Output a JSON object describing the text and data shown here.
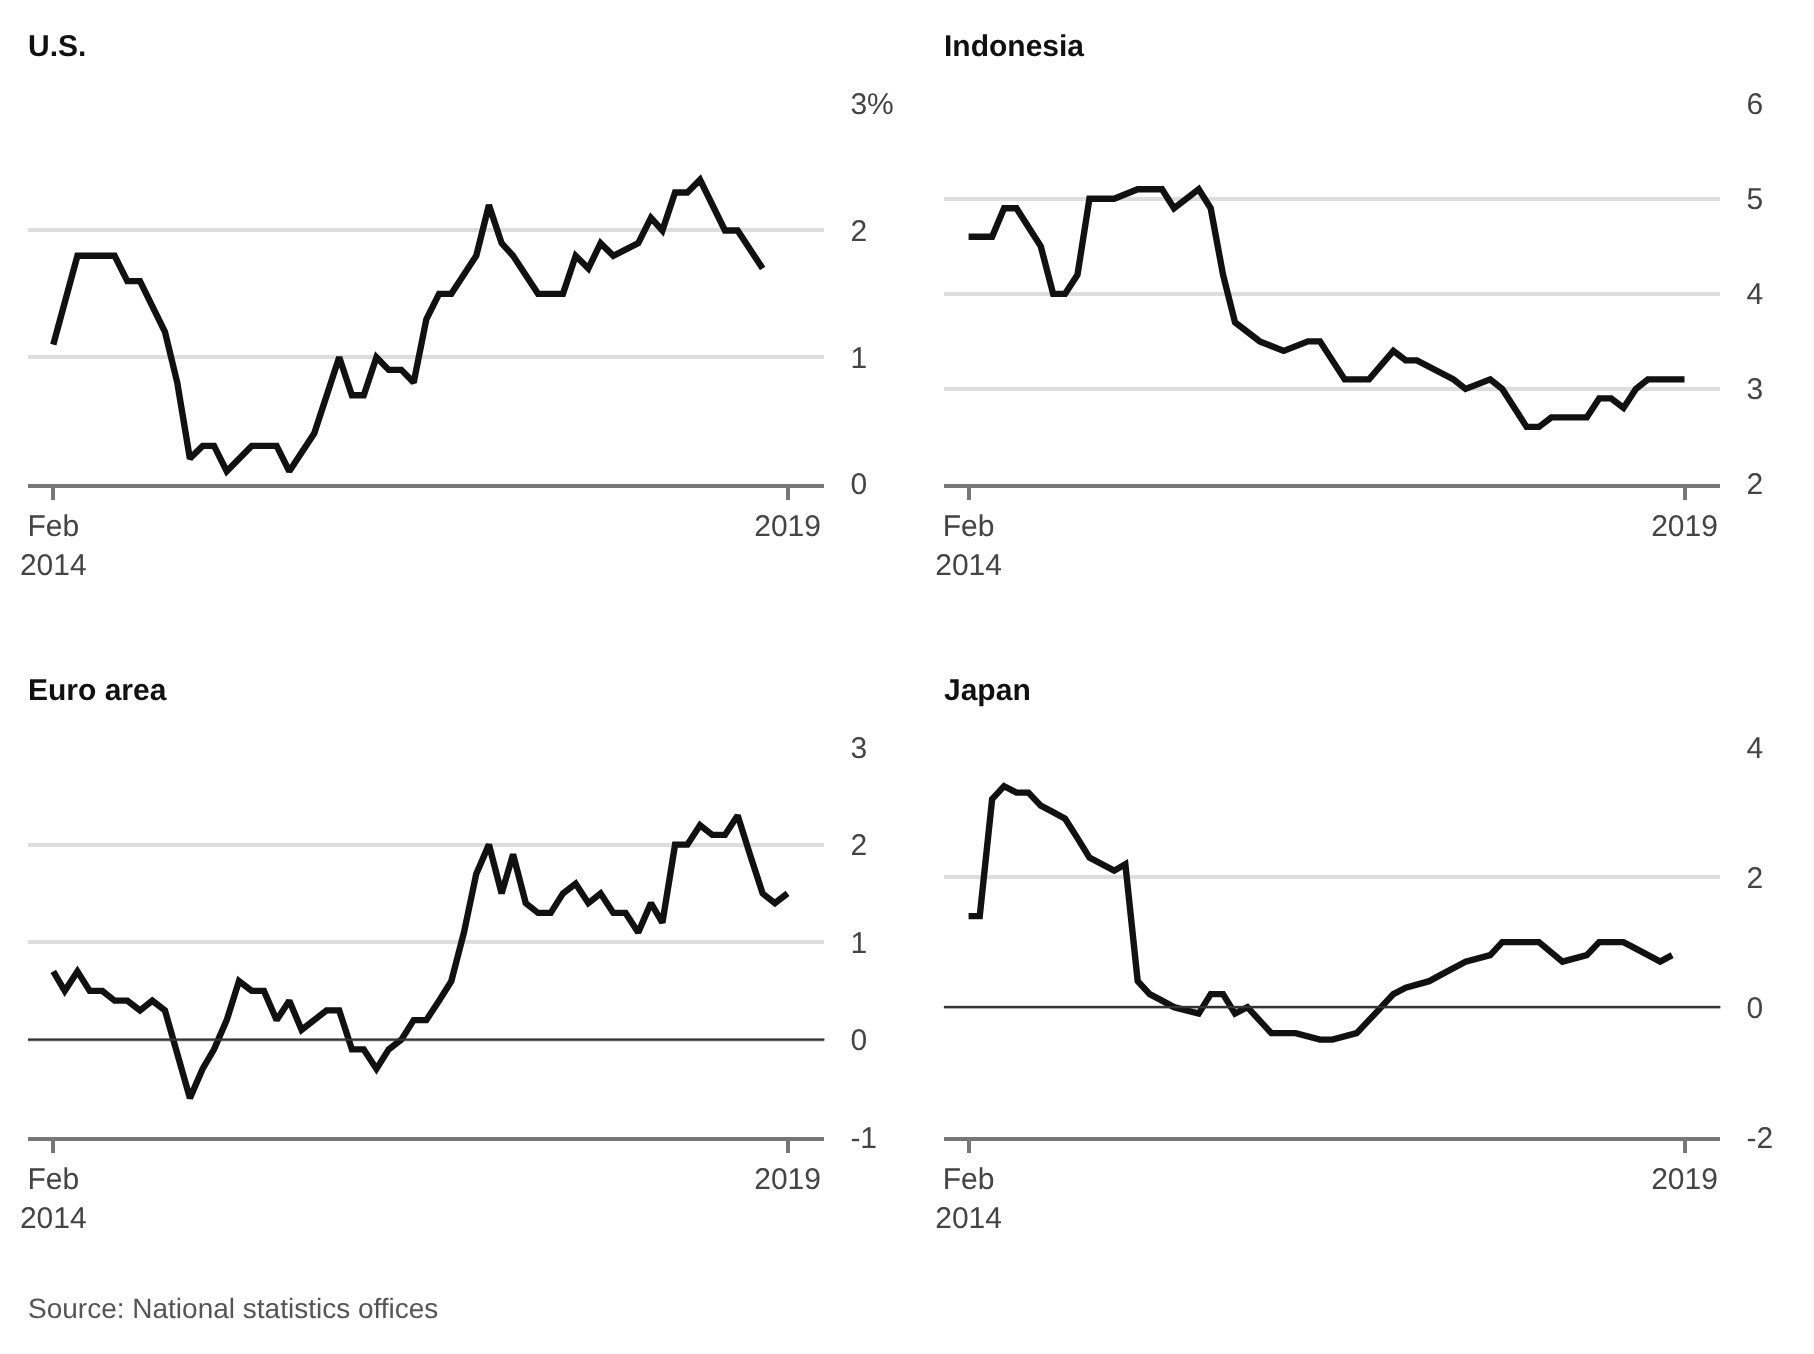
{
  "chart_data": [
    {
      "type": "line",
      "title": "U.S.",
      "xlim": [
        "2013-12-01",
        "2019-04-01"
      ],
      "xticks": [
        {
          "value": "2014-02",
          "label": "Feb\n2014"
        },
        {
          "value": "2019-01",
          "label": "2019"
        }
      ],
      "ylim": [
        0,
        3
      ],
      "yticks": [
        0,
        1,
        2,
        {
          "value": 3,
          "label": "3%"
        }
      ],
      "grid": "y",
      "series": [
        {
          "color": "#111111",
          "x": [
            "2014-02",
            "2014-04",
            "2014-07",
            "2014-08",
            "2014-09",
            "2014-11",
            "2014-12",
            "2015-01",
            "2015-02",
            "2015-03",
            "2015-04",
            "2015-06",
            "2015-08",
            "2015-09",
            "2015-11",
            "2016-01",
            "2016-02",
            "2016-03",
            "2016-04",
            "2016-05",
            "2016-06",
            "2016-07",
            "2016-08",
            "2016-09",
            "2016-10",
            "2016-12",
            "2017-01",
            "2017-02",
            "2017-03",
            "2017-05",
            "2017-07",
            "2017-08",
            "2017-09",
            "2017-10",
            "2017-11",
            "2018-01",
            "2018-02",
            "2018-03",
            "2018-04",
            "2018-05",
            "2018-06",
            "2018-08",
            "2018-09",
            "2018-11"
          ],
          "values": [
            1.1,
            1.8,
            1.8,
            1.6,
            1.6,
            1.2,
            0.8,
            0.2,
            0.3,
            0.3,
            0.1,
            0.3,
            0.3,
            0.1,
            0.4,
            1.0,
            0.7,
            0.7,
            1.0,
            0.9,
            0.9,
            0.8,
            1.3,
            1.5,
            1.5,
            1.8,
            2.2,
            1.9,
            1.8,
            1.5,
            1.5,
            1.8,
            1.7,
            1.9,
            1.8,
            1.9,
            2.1,
            2.0,
            2.3,
            2.3,
            2.4,
            2.0,
            2.0,
            1.7
          ]
        }
      ]
    },
    {
      "type": "line",
      "title": "Indonesia",
      "xlim": [
        "2013-12-01",
        "2019-04-01"
      ],
      "xticks": [
        {
          "value": "2014-02",
          "label": "Feb\n2014"
        },
        {
          "value": "2019-01",
          "label": "2019"
        }
      ],
      "ylim": [
        2,
        6
      ],
      "yticks": [
        2,
        3,
        4,
        5,
        6
      ],
      "grid": "y",
      "series": [
        {
          "color": "#111111",
          "x": [
            "2014-02",
            "2014-04",
            "2014-05",
            "2014-06",
            "2014-08",
            "2014-09",
            "2014-10",
            "2014-11",
            "2014-12",
            "2015-01",
            "2015-02",
            "2015-04",
            "2015-06",
            "2015-07",
            "2015-09",
            "2015-10",
            "2015-11",
            "2015-12",
            "2016-01",
            "2016-02",
            "2016-04",
            "2016-06",
            "2016-07",
            "2016-08",
            "2016-09",
            "2016-11",
            "2017-01",
            "2017-02",
            "2017-03",
            "2017-06",
            "2017-07",
            "2017-09",
            "2017-10",
            "2017-12",
            "2018-01",
            "2018-02",
            "2018-03",
            "2018-04",
            "2018-05",
            "2018-06",
            "2018-07",
            "2018-08",
            "2018-09",
            "2018-10",
            "2018-11",
            "2019-01"
          ],
          "values": [
            4.6,
            4.6,
            4.9,
            4.9,
            4.5,
            4.0,
            4.0,
            4.2,
            5.0,
            5.0,
            5.0,
            5.1,
            5.1,
            4.9,
            5.1,
            4.9,
            4.2,
            3.7,
            3.6,
            3.5,
            3.4,
            3.5,
            3.5,
            3.3,
            3.1,
            3.1,
            3.4,
            3.3,
            3.3,
            3.1,
            3.0,
            3.1,
            3.0,
            2.6,
            2.6,
            2.7,
            2.7,
            2.7,
            2.7,
            2.9,
            2.9,
            2.8,
            3.0,
            3.1,
            3.1,
            3.1
          ]
        }
      ]
    },
    {
      "type": "line",
      "title": "Euro area",
      "xlim": [
        "2013-12-01",
        "2019-04-01"
      ],
      "xticks": [
        {
          "value": "2014-02",
          "label": "Feb\n2014"
        },
        {
          "value": "2019-01",
          "label": "2019"
        }
      ],
      "ylim": [
        -1,
        3
      ],
      "yticks": [
        -1,
        0,
        1,
        2,
        3
      ],
      "grid": "y",
      "ref_lines": [
        {
          "axis": "y",
          "value": 0,
          "color": "#333333"
        }
      ],
      "annotations": [
        "Source: National statistics offices"
      ],
      "series": [
        {
          "color": "#111111",
          "x": [
            "2014-02",
            "2014-03",
            "2014-04",
            "2014-05",
            "2014-06",
            "2014-07",
            "2014-08",
            "2014-09",
            "2014-10",
            "2014-11",
            "2015-01",
            "2015-02",
            "2015-03",
            "2015-04",
            "2015-05",
            "2015-06",
            "2015-07",
            "2015-08",
            "2015-09",
            "2015-10",
            "2015-12",
            "2016-01",
            "2016-02",
            "2016-03",
            "2016-04",
            "2016-05",
            "2016-06",
            "2016-07",
            "2016-08",
            "2016-09",
            "2016-10",
            "2016-11",
            "2016-12",
            "2017-01",
            "2017-02",
            "2017-03",
            "2017-04",
            "2017-05",
            "2017-06",
            "2017-07",
            "2017-08",
            "2017-09",
            "2017-10",
            "2017-11",
            "2017-12",
            "2018-01",
            "2018-02",
            "2018-03",
            "2018-04",
            "2018-05",
            "2018-06",
            "2018-07",
            "2018-08",
            "2018-09",
            "2018-10",
            "2018-11",
            "2018-12",
            "2019-01"
          ],
          "values": [
            0.7,
            0.5,
            0.7,
            0.5,
            0.5,
            0.4,
            0.4,
            0.3,
            0.4,
            0.3,
            -0.6,
            -0.3,
            -0.1,
            0.2,
            0.6,
            0.5,
            0.5,
            0.2,
            0.4,
            0.1,
            0.3,
            0.3,
            -0.1,
            -0.1,
            -0.3,
            -0.1,
            0.0,
            0.2,
            0.2,
            0.4,
            0.6,
            1.1,
            1.7,
            2.0,
            1.5,
            1.9,
            1.4,
            1.3,
            1.3,
            1.5,
            1.6,
            1.4,
            1.5,
            1.3,
            1.3,
            1.1,
            1.4,
            1.2,
            2.0,
            2.0,
            2.2,
            2.1,
            2.1,
            2.3,
            1.9,
            1.5,
            1.4,
            1.5
          ]
        }
      ]
    },
    {
      "type": "line",
      "title": "Japan",
      "xlim": [
        "2013-12-01",
        "2019-04-01"
      ],
      "xticks": [
        {
          "value": "2014-02",
          "label": "Feb\n2014"
        },
        {
          "value": "2019-01",
          "label": "2019"
        }
      ],
      "ylim": [
        -2,
        4
      ],
      "yticks": [
        -2,
        0,
        2,
        4
      ],
      "grid": "y",
      "ref_lines": [
        {
          "axis": "y",
          "value": 0,
          "color": "#333333"
        }
      ],
      "series": [
        {
          "color": "#111111",
          "x": [
            "2014-02",
            "2014-03",
            "2014-04",
            "2014-05",
            "2014-06",
            "2014-07",
            "2014-08",
            "2014-09",
            "2014-10",
            "2014-11",
            "2014-12",
            "2015-02",
            "2015-03",
            "2015-04",
            "2015-05",
            "2015-06",
            "2015-07",
            "2015-09",
            "2015-10",
            "2015-11",
            "2015-12",
            "2016-01",
            "2016-03",
            "2016-05",
            "2016-07",
            "2016-08",
            "2016-10",
            "2016-11",
            "2017-01",
            "2017-02",
            "2017-04",
            "2017-05",
            "2017-07",
            "2017-09",
            "2017-10",
            "2017-12",
            "2018-01",
            "2018-03",
            "2018-05",
            "2018-06",
            "2018-08",
            "2018-09",
            "2018-11",
            "2018-12"
          ],
          "values": [
            1.4,
            1.4,
            3.2,
            3.4,
            3.3,
            3.3,
            3.1,
            3.0,
            2.9,
            2.6,
            2.3,
            2.1,
            2.2,
            0.4,
            0.2,
            0.1,
            0.0,
            -0.1,
            0.2,
            0.2,
            -0.1,
            0.0,
            -0.4,
            -0.4,
            -0.5,
            -0.5,
            -0.4,
            -0.2,
            0.2,
            0.3,
            0.4,
            0.5,
            0.7,
            0.8,
            1.0,
            1.0,
            1.0,
            0.7,
            0.8,
            1.0,
            1.0,
            0.9,
            0.7,
            0.8
          ]
        }
      ]
    }
  ]
}
